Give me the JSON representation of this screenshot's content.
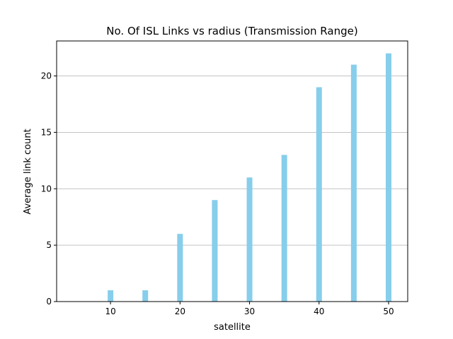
{
  "chart_data": {
    "type": "bar",
    "title": "No. Of ISL Links vs radius (Transmission Range)",
    "xlabel": "satellite",
    "ylabel": "Average link count",
    "x": [
      5,
      10,
      15,
      20,
      25,
      30,
      35,
      40,
      45,
      50
    ],
    "values": [
      0,
      1,
      1,
      6,
      9,
      11,
      13,
      19,
      21,
      22
    ],
    "xlim": [
      2.25,
      52.75
    ],
    "ylim": [
      0,
      23.1
    ],
    "xticks": [
      10,
      20,
      30,
      40,
      50
    ],
    "yticks": [
      0,
      5,
      10,
      15,
      20
    ],
    "grid": "y",
    "bar_color": "#87ceeb"
  }
}
